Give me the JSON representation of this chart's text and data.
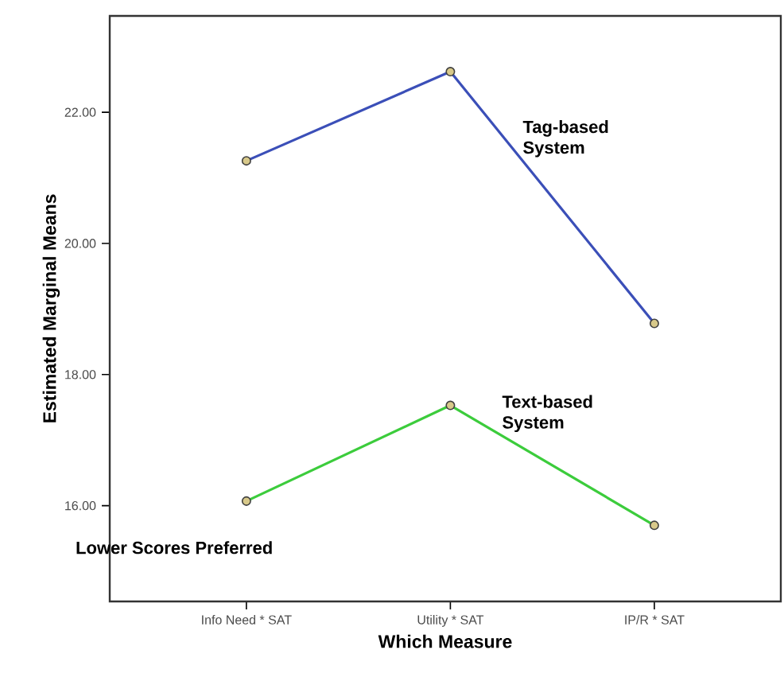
{
  "chart_data": {
    "type": "line",
    "xlabel": "Which Measure",
    "ylabel": "Estimated Marginal Means",
    "categories": [
      "Info Need * SAT",
      "Utility * SAT",
      "IP/R * SAT"
    ],
    "series": [
      {
        "name": "Tag-based System",
        "color": "#3b4fb8",
        "values": [
          21.26,
          22.62,
          18.78
        ]
      },
      {
        "name": "Text-based System",
        "color": "#3ccc3c",
        "values": [
          16.07,
          17.53,
          15.7
        ]
      }
    ],
    "ylim": [
      14.54,
      23.47
    ],
    "yticks": [
      {
        "value": 16,
        "label": "16.00"
      },
      {
        "value": 18,
        "label": "18.00"
      },
      {
        "value": 20,
        "label": "20.00"
      },
      {
        "value": 22,
        "label": "22.00"
      }
    ],
    "annotations": [
      "Lower Scores Preferred"
    ],
    "marker": "circle",
    "line_style": "solid",
    "grid": false,
    "legend": false
  }
}
